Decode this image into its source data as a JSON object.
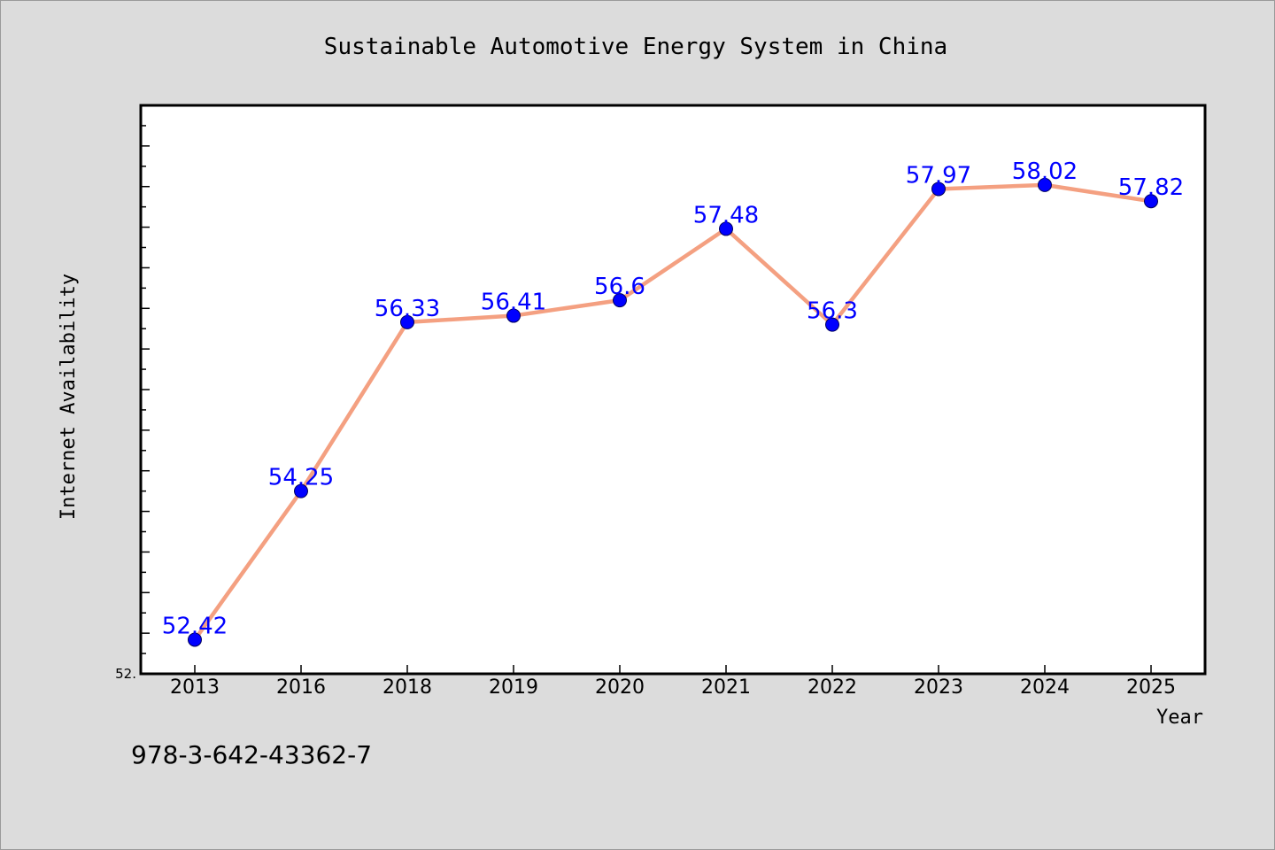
{
  "chart_data": {
    "type": "line",
    "title": "Sustainable Automotive Energy System in China",
    "xlabel": "Year",
    "ylabel": "Internet Availability",
    "categories": [
      "2013",
      "2016",
      "2018",
      "2019",
      "2020",
      "2021",
      "2022",
      "2023",
      "2024",
      "2025"
    ],
    "series": [
      {
        "values": [
          52.42,
          54.25,
          56.33,
          56.41,
          56.6,
          57.48,
          56.3,
          57.97,
          58.02,
          57.82
        ],
        "labels": [
          "52.42",
          "54.25",
          "56.33",
          "56.41",
          "56.6",
          "57.48",
          "56.3",
          "57.97",
          "58.02",
          "57.82"
        ],
        "line_color": "#f4a081",
        "marker_color": "#0000ff"
      }
    ],
    "ylim": [
      52.0,
      59.0
    ],
    "y_min_label": "52.",
    "grid": false,
    "legend": "none"
  },
  "footer": {
    "text": "978-3-642-43362-7"
  },
  "colors": {
    "background": "#dcdcdc",
    "plot_background": "#ffffff",
    "line": "#f4a081",
    "marker": "#0000ff",
    "data_label": "#0000ff"
  }
}
